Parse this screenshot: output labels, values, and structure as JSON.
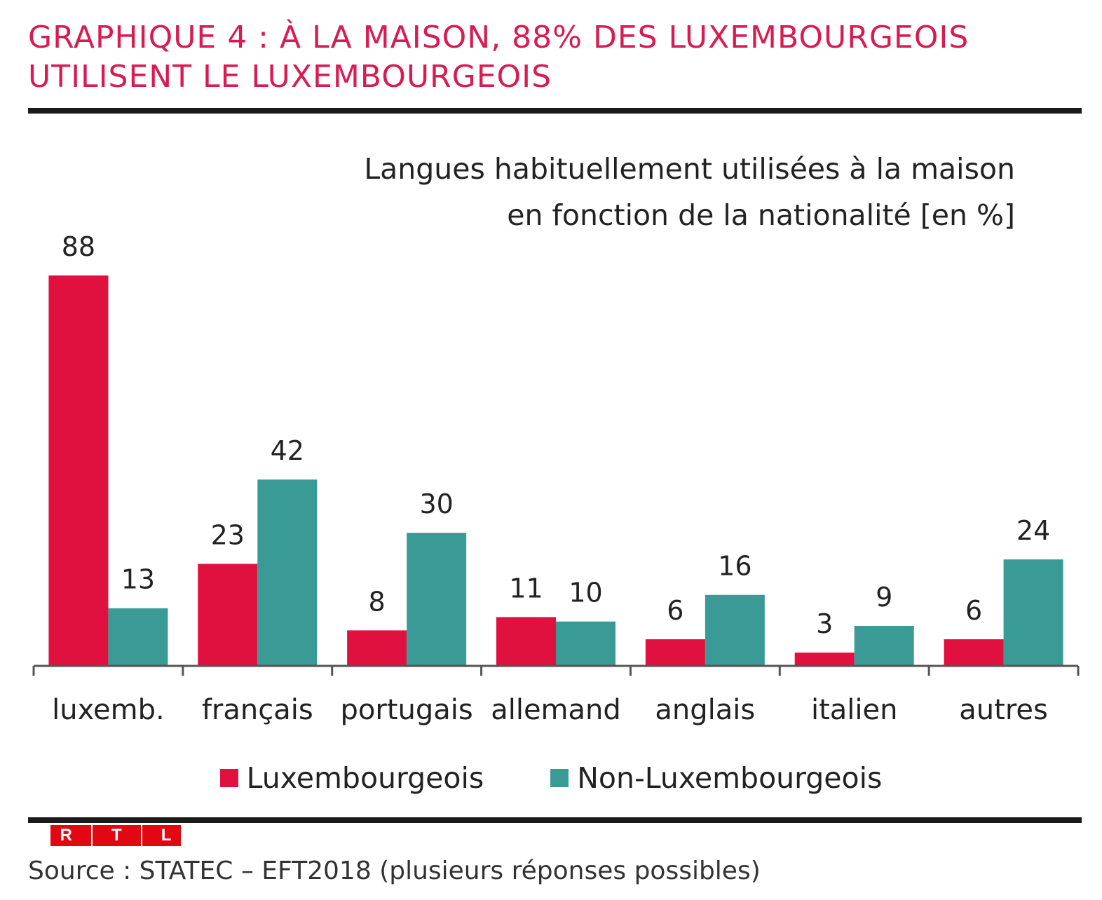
{
  "headline": "GRAPHIQUE 4 : À LA MAISON, 88% DES LUXEMBOURGEOIS UTILISENT LE LUXEMBOURGEOIS",
  "subtitle": {
    "line1": "Langues habituellement utilisées à la maison",
    "line2": "en fonction de la nationalité [en %]"
  },
  "colors": {
    "luxembourgeois": "#e0103f",
    "non_luxembourgeois": "#3a9a95",
    "axis": "#555555"
  },
  "chart_data": {
    "type": "bar",
    "title": "Langues habituellement utilisées à la maison en fonction de la nationalité [en %]",
    "categories": [
      "luxemb.",
      "français",
      "portugais",
      "allemand",
      "anglais",
      "italien",
      "autres"
    ],
    "series": [
      {
        "name": "Luxembourgeois",
        "values": [
          88,
          23,
          8,
          11,
          6,
          3,
          6
        ]
      },
      {
        "name": "Non-Luxembourgeois",
        "values": [
          13,
          42,
          30,
          10,
          16,
          9,
          24
        ]
      }
    ],
    "xlabel": "",
    "ylabel": "%",
    "ylim": [
      0,
      88
    ],
    "grid": false,
    "legend": "bottom-center"
  },
  "logo": {
    "letters": [
      "R",
      "T",
      "L"
    ]
  },
  "source": "Source : STATEC – EFT2018 (plusieurs réponses possibles)"
}
